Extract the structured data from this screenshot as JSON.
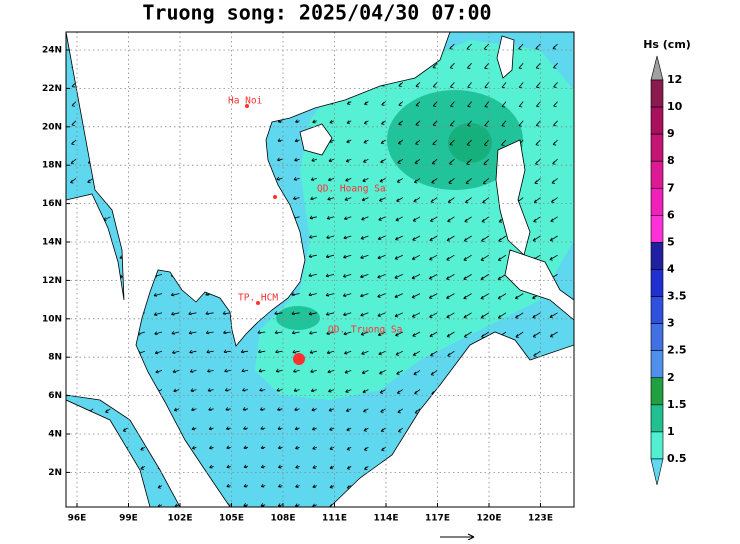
{
  "header": {
    "title": "Truong song: 2025/04/30 07:00"
  },
  "map": {
    "xticks": [
      "96E",
      "99E",
      "102E",
      "105E",
      "108E",
      "111E",
      "114E",
      "117E",
      "120E",
      "123E"
    ],
    "yticks": [
      "24N",
      "22N",
      "20N",
      "18N",
      "16N",
      "14N",
      "12N",
      "10N",
      "8N",
      "6N",
      "4N",
      "2N"
    ],
    "places": [
      {
        "label": "Ha Noi"
      },
      {
        "label": "QD. Hoang Sa"
      },
      {
        "label": "TP. HCM"
      },
      {
        "label": "QD. Truong Sa"
      }
    ]
  },
  "legend": {
    "title": "Hs (cm)",
    "levels": [
      "12",
      "10",
      "9",
      "8",
      "7",
      "6",
      "5",
      "4",
      "3.5",
      "3",
      "2.5",
      "2",
      "1.5",
      "1",
      "0.5"
    ]
  }
}
